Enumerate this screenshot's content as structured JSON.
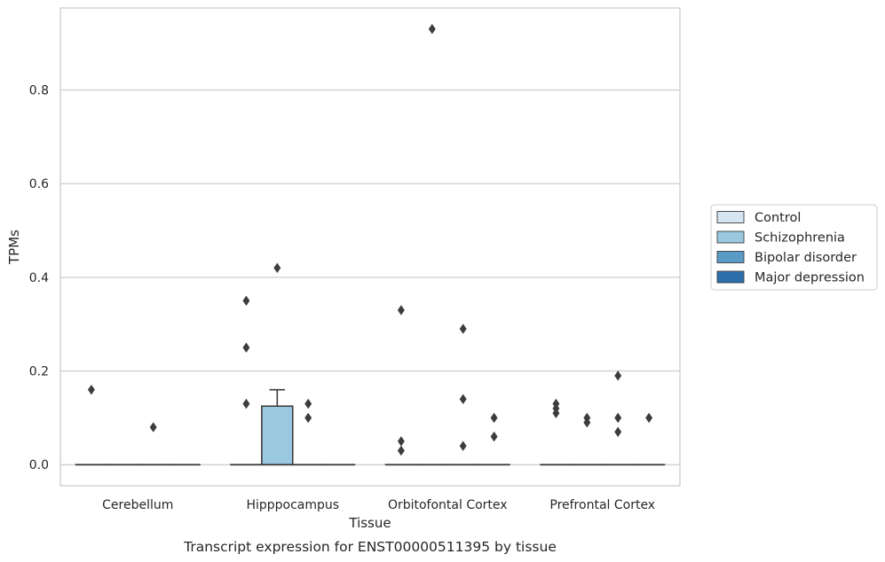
{
  "chart_data": {
    "type": "box",
    "title": "",
    "caption": "Transcript expression for ENST00000511395 by tissue",
    "xlabel": "Tissue",
    "ylabel": "TPMs",
    "ylim": [
      -0.045,
      0.975
    ],
    "yticks": [
      0.0,
      0.2,
      0.4,
      0.6,
      0.8
    ],
    "ytick_labels": [
      "0.0",
      "0.2",
      "0.4",
      "0.6",
      "0.8"
    ],
    "grid": "horizontal",
    "legend_position": "right",
    "categories": [
      "Cerebellum",
      "Hipppocampus",
      "Orbitofontal Cortex",
      "Prefrontal Cortex"
    ],
    "series": [
      {
        "name": "Control",
        "color": "#d6e5f2",
        "boxes": [
          {
            "q1": 0,
            "median": 0,
            "q3": 0,
            "whisker_low": 0,
            "whisker_high": 0,
            "outliers": [
              0.16
            ]
          },
          {
            "q1": 0,
            "median": 0,
            "q3": 0,
            "whisker_low": 0,
            "whisker_high": 0,
            "outliers": [
              0.35,
              0.25,
              0.13
            ]
          },
          {
            "q1": 0,
            "median": 0,
            "q3": 0,
            "whisker_low": 0,
            "whisker_high": 0,
            "outliers": [
              0.33,
              0.05,
              0.03
            ]
          },
          {
            "q1": 0,
            "median": 0,
            "q3": 0,
            "whisker_low": 0,
            "whisker_high": 0,
            "outliers": [
              0.13,
              0.12,
              0.11
            ]
          }
        ]
      },
      {
        "name": "Schizophrenia",
        "color": "#9ac8e0",
        "boxes": [
          {
            "q1": 0,
            "median": 0,
            "q3": 0,
            "whisker_low": 0,
            "whisker_high": 0,
            "outliers": []
          },
          {
            "q1": 0,
            "median": 0,
            "q3": 0.125,
            "whisker_low": 0,
            "whisker_high": 0.16,
            "outliers": [
              0.42
            ]
          },
          {
            "q1": 0,
            "median": 0,
            "q3": 0,
            "whisker_low": 0,
            "whisker_high": 0,
            "outliers": [
              0.93
            ]
          },
          {
            "q1": 0,
            "median": 0,
            "q3": 0,
            "whisker_low": 0,
            "whisker_high": 0,
            "outliers": [
              0.1,
              0.09
            ]
          }
        ]
      },
      {
        "name": "Bipolar disorder",
        "color": "#5a9ac7",
        "boxes": [
          {
            "q1": 0,
            "median": 0,
            "q3": 0,
            "whisker_low": 0,
            "whisker_high": 0,
            "outliers": [
              0.08
            ]
          },
          {
            "q1": 0,
            "median": 0,
            "q3": 0,
            "whisker_low": 0,
            "whisker_high": 0,
            "outliers": [
              0.13,
              0.1
            ]
          },
          {
            "q1": 0,
            "median": 0,
            "q3": 0,
            "whisker_low": 0,
            "whisker_high": 0,
            "outliers": [
              0.29,
              0.14,
              0.04
            ]
          },
          {
            "q1": 0,
            "median": 0,
            "q3": 0,
            "whisker_low": 0,
            "whisker_high": 0,
            "outliers": [
              0.19,
              0.1,
              0.07
            ]
          }
        ]
      },
      {
        "name": "Major depression",
        "color": "#2a6eac",
        "boxes": [
          {
            "q1": 0,
            "median": 0,
            "q3": 0,
            "whisker_low": 0,
            "whisker_high": 0,
            "outliers": []
          },
          {
            "q1": 0,
            "median": 0,
            "q3": 0,
            "whisker_low": 0,
            "whisker_high": 0,
            "outliers": []
          },
          {
            "q1": 0,
            "median": 0,
            "q3": 0,
            "whisker_low": 0,
            "whisker_high": 0,
            "outliers": [
              0.1,
              0.06
            ]
          },
          {
            "q1": 0,
            "median": 0,
            "q3": 0,
            "whisker_low": 0,
            "whisker_high": 0,
            "outliers": [
              0.1
            ]
          }
        ]
      }
    ]
  }
}
